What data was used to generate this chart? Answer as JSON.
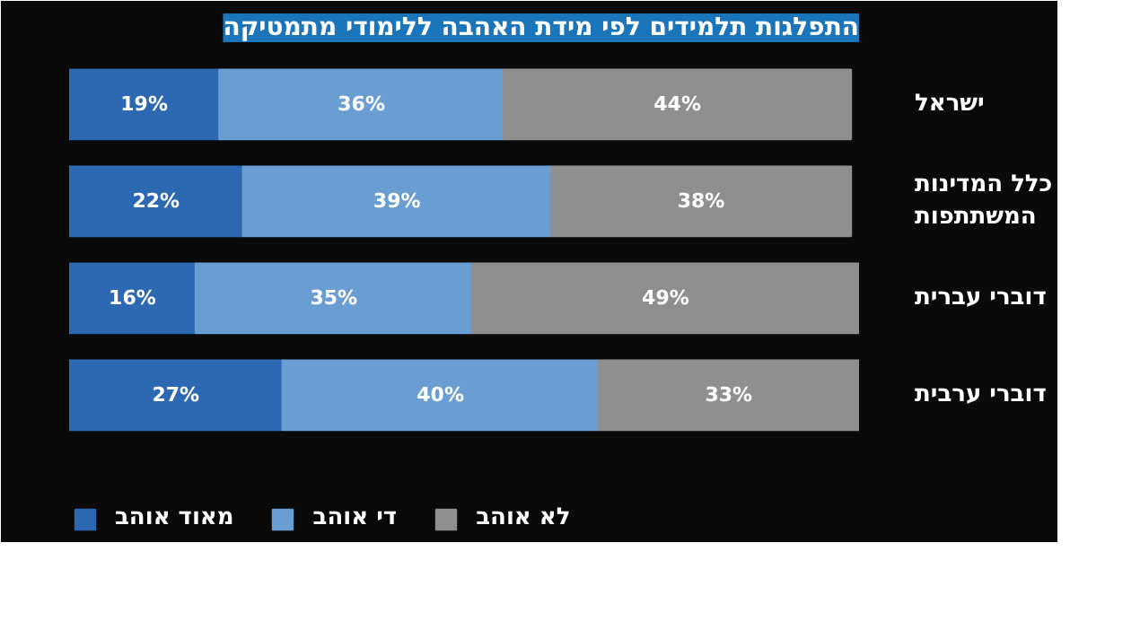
{
  "chart_data": {
    "type": "bar",
    "orientation": "horizontal",
    "stacked": true,
    "title": "התפלגות תלמידים לפי מידת האהבה ללימודי מתמטיקה",
    "categories": [
      "ישראל",
      "כלל המדינות\nהמשתתפות",
      "דוברי עברית",
      "דוברי ערבית"
    ],
    "series": [
      {
        "name": "מאוד אוהב",
        "color": "#2d68b2",
        "values": [
          19,
          22,
          16,
          27
        ],
        "value_labels": [
          "19%",
          "22%",
          "16%",
          "27%"
        ]
      },
      {
        "name": "די אוהב",
        "color": "#6a9ed3",
        "values": [
          36,
          39,
          35,
          40
        ],
        "value_labels": [
          "36%",
          "39%",
          "35%",
          "40%"
        ]
      },
      {
        "name": "לא אוהב",
        "color": "#8f8f90",
        "values": [
          44,
          38,
          49,
          33
        ],
        "value_labels": [
          "44%",
          "38%",
          "49%",
          "33%"
        ]
      }
    ],
    "legend": "bottom",
    "grid": false
  }
}
